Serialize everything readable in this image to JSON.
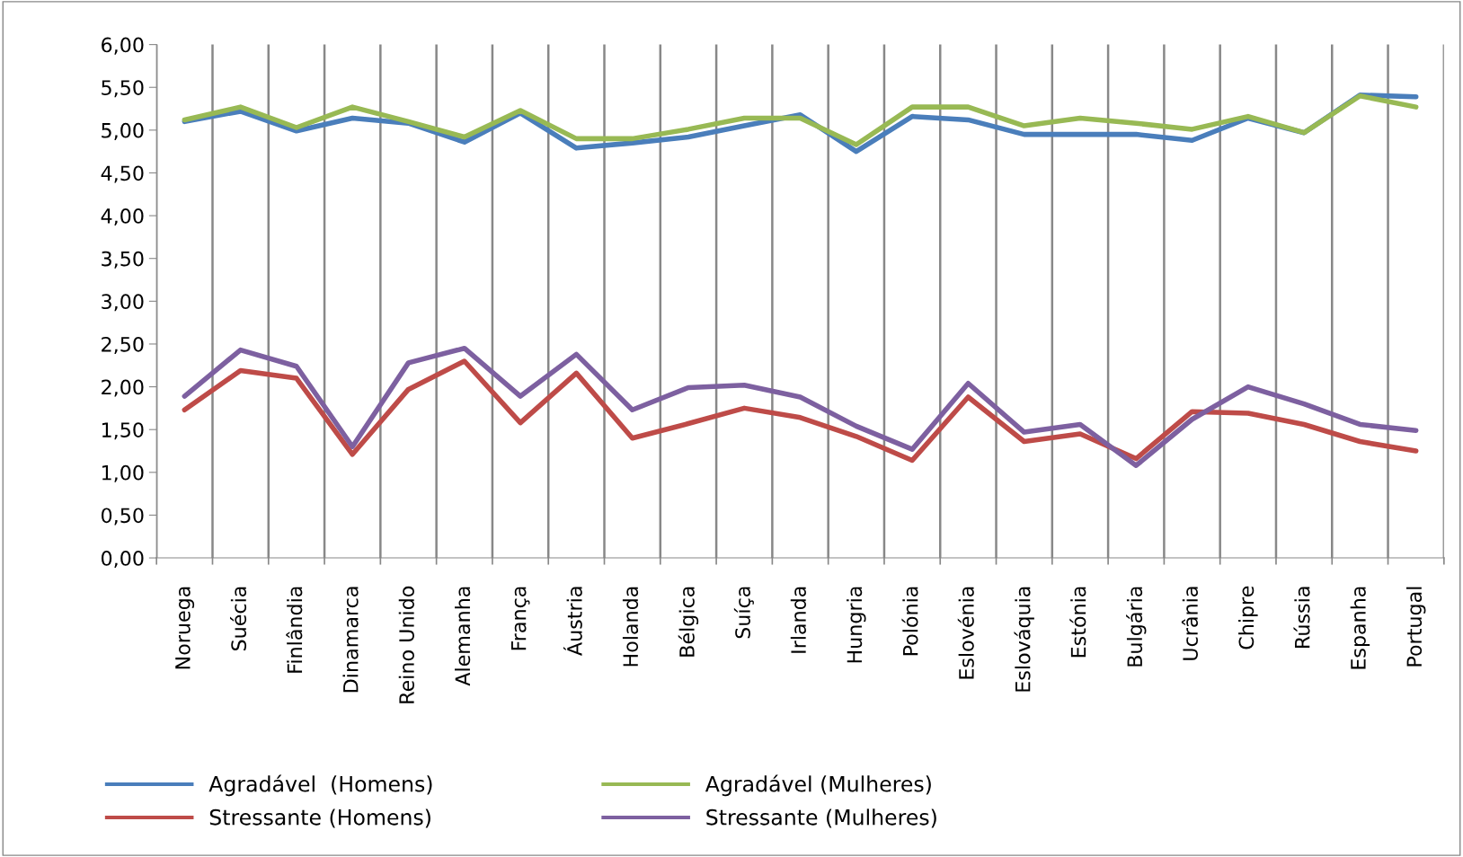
{
  "chart_data": {
    "type": "line",
    "categories": [
      "Noruega",
      "Suécia",
      "Finlândia",
      "Dinamarca",
      "Reino Unido",
      "Alemanha",
      "França",
      "Áustria",
      "Holanda",
      "Bélgica",
      "Suíça",
      "Irlanda",
      "Hungria",
      "Polónia",
      "Eslovénia",
      "Eslováquia",
      "Estónia",
      "Bulgária",
      "Ucrânia",
      "Chipre",
      "Rússia",
      "Espanha",
      "Portugal"
    ],
    "series": [
      {
        "name": "Agradável  (Homens)",
        "color": "#4a7ebb",
        "values": [
          5.1,
          5.22,
          4.99,
          5.14,
          5.08,
          4.86,
          5.2,
          4.79,
          4.85,
          4.92,
          5.05,
          5.18,
          4.75,
          5.16,
          5.12,
          4.95,
          4.95,
          4.95,
          4.88,
          5.14,
          4.97,
          5.41,
          5.39
        ]
      },
      {
        "name": "Stressante (Homens)",
        "color": "#be4b48",
        "values": [
          1.73,
          2.19,
          2.1,
          1.21,
          1.97,
          2.3,
          1.58,
          2.16,
          1.4,
          1.57,
          1.75,
          1.64,
          1.42,
          1.14,
          1.88,
          1.36,
          1.45,
          1.16,
          1.71,
          1.69,
          1.56,
          1.36,
          1.25
        ]
      },
      {
        "name": "Agradável (Mulheres)",
        "color": "#98b954",
        "values": [
          5.12,
          5.27,
          5.03,
          5.27,
          5.1,
          4.92,
          5.23,
          4.9,
          4.9,
          5.01,
          5.14,
          5.14,
          4.83,
          5.27,
          5.27,
          5.05,
          5.14,
          5.08,
          5.01,
          5.16,
          4.97,
          5.4,
          5.27
        ]
      },
      {
        "name": "Stressante (Mulheres)",
        "color": "#7d60a0",
        "values": [
          1.89,
          2.43,
          2.24,
          1.3,
          2.28,
          2.45,
          1.89,
          2.38,
          1.73,
          1.99,
          2.02,
          1.88,
          1.54,
          1.27,
          2.04,
          1.47,
          1.56,
          1.08,
          1.62,
          2.0,
          1.8,
          1.56,
          1.49
        ]
      }
    ],
    "ylim": [
      0,
      6
    ],
    "yticks": [
      {
        "value": 0,
        "label": "0,00"
      },
      {
        "value": 0.5,
        "label": "0,50"
      },
      {
        "value": 1,
        "label": "1,00"
      },
      {
        "value": 1.5,
        "label": "1,50"
      },
      {
        "value": 2,
        "label": "2,00"
      },
      {
        "value": 2.5,
        "label": "2,50"
      },
      {
        "value": 3,
        "label": "3,00"
      },
      {
        "value": 3.5,
        "label": "3,50"
      },
      {
        "value": 4,
        "label": "4,00"
      },
      {
        "value": 4.5,
        "label": "4,50"
      },
      {
        "value": 5,
        "label": "5,00"
      },
      {
        "value": 5.5,
        "label": "5,50"
      },
      {
        "value": 6,
        "label": "6,00"
      }
    ],
    "grid": "x",
    "legend": "bottom",
    "marker": "none",
    "line_style": "solid"
  }
}
